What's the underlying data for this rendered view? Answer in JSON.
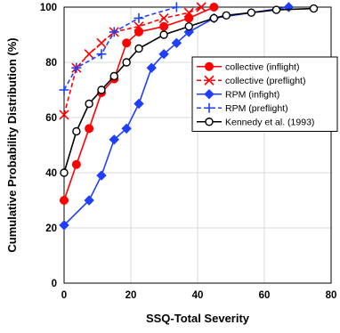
{
  "chart_data": {
    "type": "line",
    "title": "",
    "xlabel": "SSQ-Total Severity",
    "ylabel": "Cumulative Probability Distribution (%)",
    "xlim": [
      0,
      80
    ],
    "ylim": [
      0,
      100
    ],
    "xticks": [
      "0",
      "20",
      "40",
      "60",
      "80"
    ],
    "yticks": [
      "0",
      "20",
      "40",
      "60",
      "80",
      "100"
    ],
    "grid": true,
    "legend_position": "right",
    "series": [
      {
        "name": "collective (inflight)",
        "color": "#ff0000",
        "dash": "solid",
        "marker": "circle",
        "x": [
          0,
          3.7,
          7.5,
          11.2,
          15,
          18.7,
          22.4,
          29.9,
          37.4,
          44.9
        ],
        "y": [
          30,
          43,
          56,
          69,
          74,
          87,
          91,
          93,
          96,
          100
        ]
      },
      {
        "name": "collective (preflight)",
        "color": "#ff0000",
        "dash": "dashed",
        "marker": "x",
        "x": [
          0,
          3.7,
          7.5,
          11.2,
          15,
          22.4,
          29.9,
          37.4,
          41.1
        ],
        "y": [
          61,
          78,
          83,
          87,
          91,
          93,
          96,
          98,
          100
        ]
      },
      {
        "name": "RPM (infight)",
        "color": "#1f3fff",
        "dash": "solid",
        "marker": "diamond",
        "x": [
          0,
          7.5,
          11.2,
          15,
          18.7,
          22.4,
          26.2,
          29.9,
          33.7,
          37.4,
          44.9,
          67.3
        ],
        "y": [
          21,
          30,
          39,
          52,
          56,
          65,
          78,
          83,
          87,
          91,
          96,
          100
        ]
      },
      {
        "name": "RPM (preflight)",
        "color": "#1f3fff",
        "dash": "dashed",
        "marker": "plus",
        "x": [
          0,
          3.7,
          11.2,
          15,
          22.4,
          33.7
        ],
        "y": [
          70,
          78,
          83,
          91,
          96,
          100
        ]
      },
      {
        "name": "Kennedy et al. (1993)",
        "color": "#000000",
        "dash": "solid",
        "marker": "open-circle",
        "x": [
          0,
          3.7,
          7.5,
          11.2,
          15,
          18.7,
          22.4,
          29.9,
          37.4,
          44.9,
          48.6,
          56.1,
          63.6,
          74.8
        ],
        "y": [
          40,
          55,
          65,
          70,
          75,
          80,
          85,
          90,
          93,
          96,
          97,
          98,
          99,
          99.5
        ]
      }
    ]
  }
}
